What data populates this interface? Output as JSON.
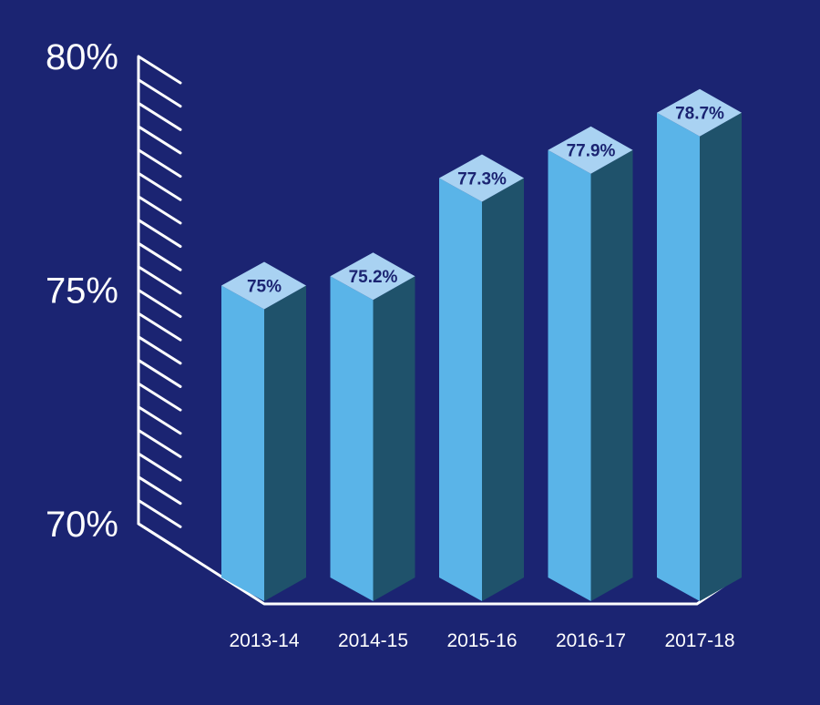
{
  "colors": {
    "background": "#1b2472",
    "bar_front": "#5ab4e8",
    "bar_side": "#1f526b",
    "bar_top": "#a9d2f2",
    "axis": "#ffffff",
    "label_text": "#1b2472"
  },
  "chart_data": {
    "type": "bar",
    "style": "3d",
    "categories": [
      "2013-14",
      "2014-15",
      "2015-16",
      "2016-17",
      "2017-18"
    ],
    "values": [
      75,
      75.2,
      77.3,
      77.9,
      78.7
    ],
    "data_labels": [
      "75%",
      "75.2%",
      "77.3%",
      "77.9%",
      "78.7%"
    ],
    "ylim": [
      70,
      80
    ],
    "yticks": [
      70,
      75,
      80
    ],
    "ytick_labels": [
      "70%",
      "75%",
      "80%"
    ],
    "title": "",
    "xlabel": "",
    "ylabel": "",
    "grid": false,
    "legend": "none"
  }
}
